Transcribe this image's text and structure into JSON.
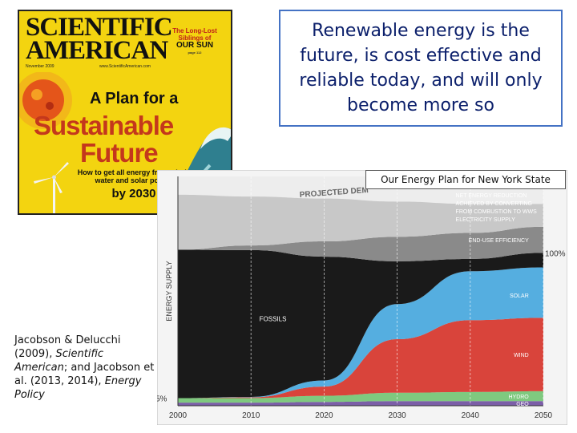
{
  "slide_title": "Renewable energy is the future, is cost effective and reliable today, and will only become more so",
  "chart_label": "Our Energy Plan for New York State",
  "magazine_cover": {
    "title_line1": "SCIENTIFIC",
    "title_line2": "AMERICAN",
    "date": "November 2009",
    "url": "www.ScientificAmerican.com",
    "sun_caption_line1": "The Long-Lost",
    "sun_caption_line2": "Siblings of",
    "sun_caption_line3": "OUR SUN",
    "sun_caption_page": "page 112",
    "headline_intro": "A Plan for a",
    "headline_word1": "Sustainable",
    "headline_word2": "Future",
    "subhead": "How to get all energy from wind, water and solar power",
    "by_year": "by 2030"
  },
  "citation": {
    "p1": "Jacobson & Delucchi (2009), ",
    "p1_italic": "Scientific American",
    "p2": "; and Jacobson et al. (2013, 2014), ",
    "p2_italic": "Energy Policy"
  },
  "chart_data": {
    "type": "area",
    "stacked": true,
    "title": "PROJECTED DEM",
    "ylabel": "ENERGY SUPPLY",
    "x": [
      2000,
      2010,
      2020,
      2030,
      2040,
      2050
    ],
    "xlim": [
      2000,
      2050
    ],
    "tick_labels": [
      "2000",
      "2010",
      "2020",
      "2030",
      "2040",
      "2050"
    ],
    "ylim": [
      0,
      150
    ],
    "grid": true,
    "y_markers": [
      {
        "label": "5%",
        "value": 5
      },
      {
        "label": "100%",
        "value": 100
      }
    ],
    "series": [
      {
        "name": "GEO",
        "color": "#7b5ea7",
        "values": [
          2,
          2,
          2.5,
          3,
          3,
          3
        ]
      },
      {
        "name": "HYDRO",
        "color": "#7fc97f",
        "values": [
          3,
          3,
          4,
          5.5,
          6,
          6.5
        ]
      },
      {
        "name": "WIND",
        "color": "#d9443b",
        "values": [
          0,
          0.5,
          6,
          35,
          47,
          48
        ]
      },
      {
        "name": "SOLAR",
        "color": "#55aee0",
        "values": [
          0,
          0.3,
          4,
          23,
          32,
          33
        ]
      },
      {
        "name": "FOSSILS",
        "color": "#1a1a1a",
        "values": [
          97,
          96,
          81,
          28,
          8,
          9.5
        ]
      },
      {
        "name": "END-USE EFFICIENCY",
        "color": "#8a8a8a",
        "values": [
          0,
          3,
          10,
          16,
          17,
          17
        ]
      },
      {
        "name": "NET ENERGY REDUCTION ACHIEVED BY CONVERTING FROM COMBUSTION TO WWS ELECTRICITY SUPPLY",
        "color": "#c8c8c8",
        "values": [
          36,
          32,
          28,
          23,
          19,
          15
        ]
      }
    ]
  }
}
